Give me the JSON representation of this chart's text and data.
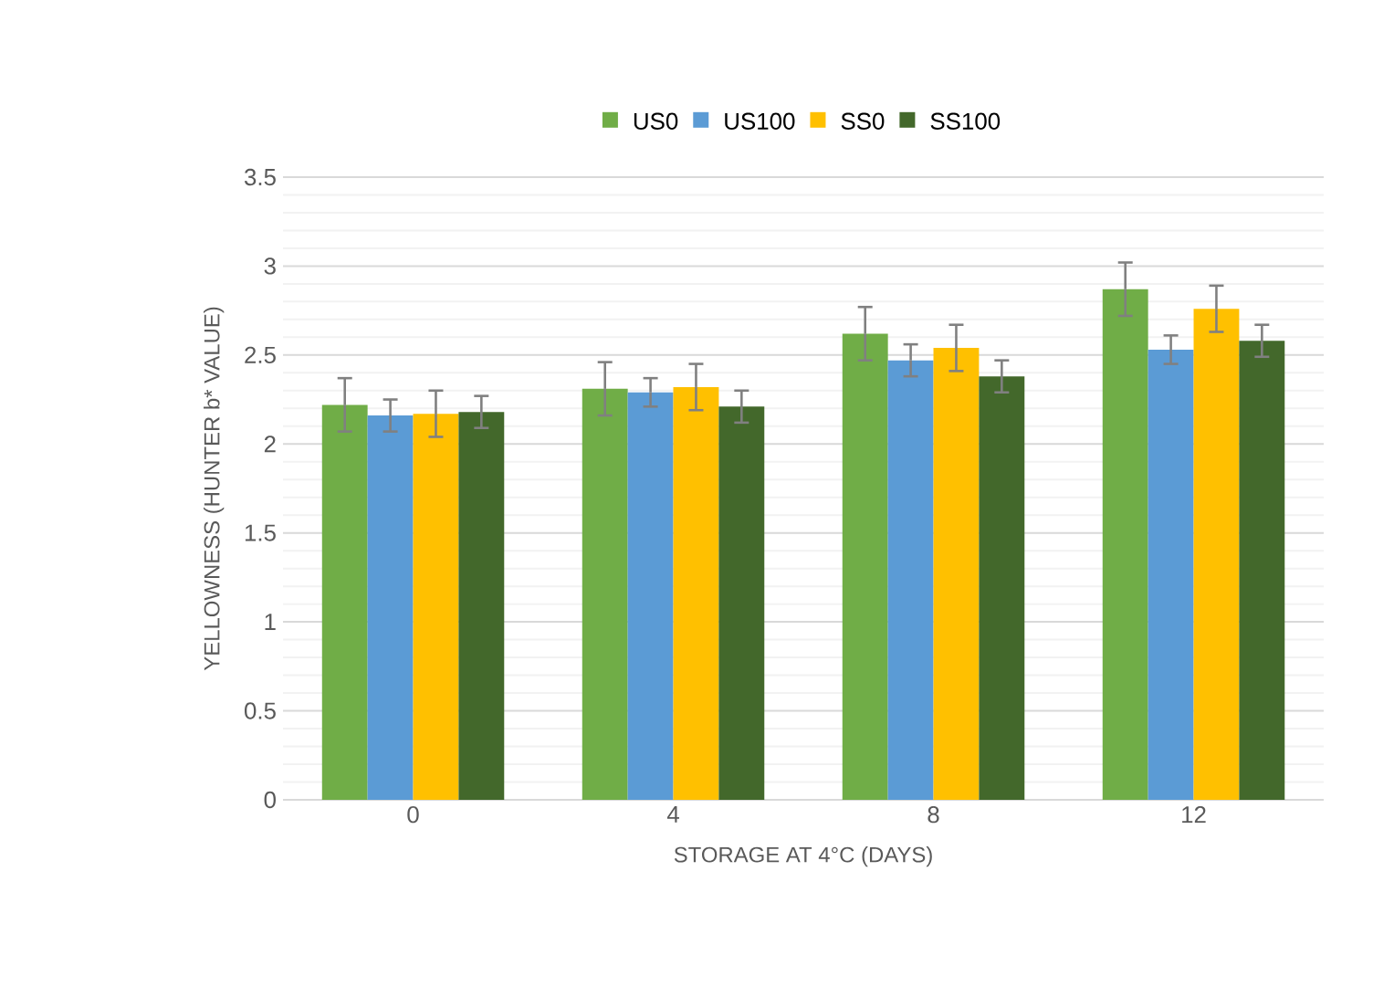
{
  "chart_data": {
    "type": "bar",
    "xlabel": "STORAGE AT 4°C (DAYS)",
    "ylabel": "YELLOWNESS (HUNTER b* VALUE)",
    "categories": [
      "0",
      "4",
      "8",
      "12"
    ],
    "series": [
      {
        "name": "US0",
        "color": "#70ad47",
        "values": [
          2.22,
          2.31,
          2.62,
          2.87
        ],
        "errors": [
          0.15,
          0.15,
          0.15,
          0.15
        ]
      },
      {
        "name": "US100",
        "color": "#5b9bd5",
        "values": [
          2.16,
          2.29,
          2.47,
          2.53
        ],
        "errors": [
          0.09,
          0.08,
          0.09,
          0.08
        ]
      },
      {
        "name": "SS0",
        "color": "#ffc000",
        "values": [
          2.17,
          2.32,
          2.54,
          2.76
        ],
        "errors": [
          0.13,
          0.13,
          0.13,
          0.13
        ]
      },
      {
        "name": "SS100",
        "color": "#43682b",
        "values": [
          2.18,
          2.21,
          2.38,
          2.58
        ],
        "errors": [
          0.09,
          0.09,
          0.09,
          0.09
        ]
      }
    ],
    "ylim": [
      0,
      3.5
    ],
    "yticks": [
      0,
      0.5,
      1,
      1.5,
      2,
      2.5,
      3,
      3.5
    ],
    "grid": "y",
    "legend": "top"
  }
}
